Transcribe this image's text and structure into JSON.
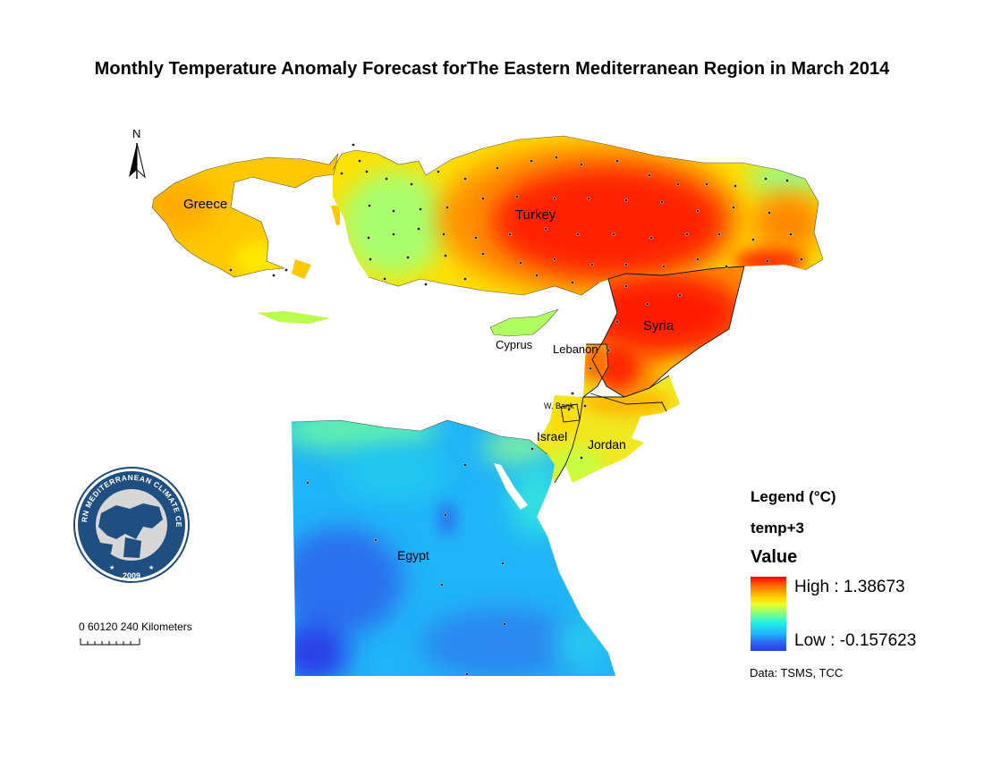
{
  "title": "Monthly Temperature Anomaly Forecast forThe Eastern Mediterranean Region in March 2014",
  "north_arrow": {
    "letter": "N"
  },
  "countries": {
    "greece": "Greece",
    "turkey": "Turkey",
    "syria": "Syria",
    "cyprus": "Cyprus",
    "lebanon": "Lebanon",
    "west_bank": "W. Bank",
    "israel": "Israel",
    "jordan": "Jordan",
    "egypt": "Egypt"
  },
  "logo": {
    "text": "EASTERN MEDITERRANEAN CLIMATE CENTRE",
    "year": "2009"
  },
  "scale": {
    "labels": "0 60120   240 Kilometers",
    "unit": "Kilometers"
  },
  "legend": {
    "title": "Legend (°C)",
    "layer": "temp+3",
    "value_label": "Value",
    "high": "High : 1.38673",
    "low": "Low : -0.157623",
    "high_value": 1.38673,
    "low_value": -0.157623
  },
  "data_source": "Data:  TSMS, TCC",
  "colors": {
    "high": "#ff0000",
    "orange": "#ff8c00",
    "yellow": "#ffe800",
    "green": "#7dff7d",
    "cyan": "#20e0f0",
    "blue": "#2a70f0",
    "low": "#2a3ae8"
  }
}
